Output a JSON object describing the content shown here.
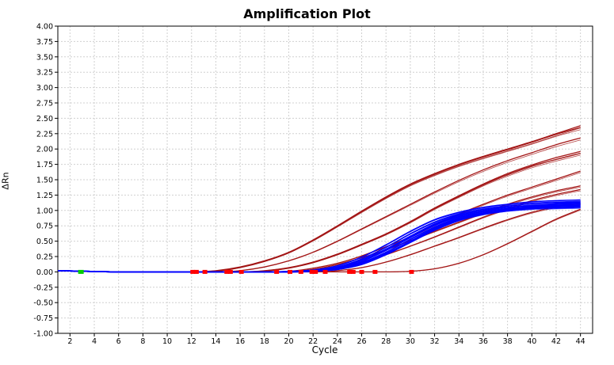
{
  "chart_data": {
    "type": "line",
    "title": "Amplification Plot",
    "xlabel": "Cycle",
    "ylabel": "ΔRn",
    "xlim": [
      1,
      45
    ],
    "ylim": [
      -1.0,
      4.0
    ],
    "x_ticks": [
      2,
      4,
      6,
      8,
      10,
      12,
      14,
      16,
      18,
      20,
      22,
      24,
      26,
      28,
      30,
      32,
      34,
      36,
      38,
      40,
      42,
      44
    ],
    "y_ticks": [
      "-1.00",
      "-0.75",
      "-0.50",
      "-0.25",
      "0.00",
      "0.25",
      "0.50",
      "0.75",
      "1.00",
      "1.25",
      "1.50",
      "1.75",
      "2.00",
      "2.25",
      "2.50",
      "2.75",
      "3.00",
      "3.25",
      "3.50",
      "3.75",
      "4.00"
    ],
    "grid": true,
    "series_colors": {
      "standards": "#a31515",
      "samples": "#0000ff",
      "baseline_start": "#00cc00",
      "ct_marker": "#ff0000"
    },
    "series": [
      {
        "group": "standards",
        "x": [
          1,
          6,
          12,
          14,
          16,
          18,
          20,
          22,
          24,
          26,
          28,
          30,
          32,
          34,
          36,
          38,
          40,
          42,
          44
        ],
        "values": [
          0.02,
          0.0,
          0.0,
          0.02,
          0.08,
          0.18,
          0.32,
          0.52,
          0.75,
          0.99,
          1.22,
          1.43,
          1.6,
          1.75,
          1.88,
          2.0,
          2.12,
          2.25,
          2.38
        ]
      },
      {
        "group": "standards",
        "x": [
          1,
          6,
          12,
          14,
          16,
          18,
          20,
          22,
          24,
          26,
          28,
          30,
          32,
          34,
          36,
          38,
          40,
          42,
          44
        ],
        "values": [
          0.02,
          0.0,
          0.0,
          0.01,
          0.07,
          0.17,
          0.31,
          0.51,
          0.74,
          0.98,
          1.21,
          1.42,
          1.59,
          1.74,
          1.87,
          1.99,
          2.11,
          2.24,
          2.35
        ]
      },
      {
        "group": "standards",
        "x": [
          1,
          6,
          12,
          14,
          16,
          18,
          20,
          22,
          24,
          26,
          28,
          30,
          32,
          34,
          36,
          38,
          40,
          42,
          44
        ],
        "values": [
          0.02,
          0.0,
          0.0,
          0.0,
          0.02,
          0.08,
          0.18,
          0.32,
          0.5,
          0.7,
          0.9,
          1.1,
          1.3,
          1.49,
          1.66,
          1.81,
          1.94,
          2.07,
          2.18
        ]
      },
      {
        "group": "standards",
        "x": [
          1,
          6,
          12,
          16,
          18,
          20,
          22,
          24,
          26,
          28,
          30,
          32,
          34,
          36,
          38,
          40,
          42,
          44
        ],
        "values": [
          0.02,
          0.0,
          0.0,
          0.0,
          0.02,
          0.07,
          0.16,
          0.29,
          0.45,
          0.62,
          0.82,
          1.04,
          1.24,
          1.43,
          1.6,
          1.74,
          1.86,
          1.96
        ]
      },
      {
        "group": "standards",
        "x": [
          1,
          6,
          12,
          16,
          18,
          20,
          22,
          24,
          26,
          28,
          30,
          32,
          34,
          36,
          38,
          40,
          42,
          44
        ],
        "values": [
          0.02,
          0.0,
          0.0,
          0.0,
          0.01,
          0.06,
          0.15,
          0.28,
          0.44,
          0.61,
          0.81,
          1.03,
          1.23,
          1.42,
          1.58,
          1.72,
          1.83,
          1.93
        ]
      },
      {
        "group": "standards",
        "x": [
          1,
          6,
          12,
          18,
          20,
          22,
          24,
          26,
          28,
          30,
          32,
          34,
          36,
          38,
          40,
          42,
          44
        ],
        "values": [
          0.02,
          0.0,
          0.0,
          0.0,
          0.01,
          0.06,
          0.14,
          0.26,
          0.41,
          0.57,
          0.76,
          0.94,
          1.1,
          1.25,
          1.38,
          1.51,
          1.64
        ]
      },
      {
        "group": "standards",
        "x": [
          1,
          6,
          12,
          18,
          20,
          22,
          24,
          26,
          28,
          30,
          32,
          34,
          36,
          38,
          40,
          42,
          44
        ],
        "values": [
          0.02,
          0.0,
          0.0,
          0.0,
          0.0,
          0.04,
          0.12,
          0.23,
          0.36,
          0.51,
          0.66,
          0.81,
          0.96,
          1.1,
          1.22,
          1.32,
          1.4
        ]
      },
      {
        "group": "standards",
        "x": [
          1,
          6,
          12,
          20,
          22,
          24,
          26,
          28,
          30,
          32,
          34,
          36,
          38,
          40,
          42,
          44
        ],
        "values": [
          0.02,
          0.0,
          0.0,
          0.0,
          0.02,
          0.07,
          0.16,
          0.28,
          0.42,
          0.57,
          0.73,
          0.89,
          1.03,
          1.16,
          1.26,
          1.34
        ]
      },
      {
        "group": "standards",
        "x": [
          1,
          6,
          12,
          22,
          24,
          26,
          28,
          30,
          32,
          34,
          36,
          38,
          40,
          42,
          44
        ],
        "values": [
          0.02,
          0.0,
          0.0,
          0.0,
          0.02,
          0.07,
          0.16,
          0.28,
          0.42,
          0.56,
          0.71,
          0.85,
          0.97,
          1.06,
          1.12
        ]
      },
      {
        "group": "standards",
        "x": [
          1,
          6,
          12,
          26,
          28,
          30,
          32,
          34,
          36,
          38,
          40,
          42,
          44
        ],
        "values": [
          0.02,
          0.0,
          0.0,
          0.0,
          0.0,
          0.01,
          0.05,
          0.14,
          0.28,
          0.46,
          0.66,
          0.86,
          1.02
        ]
      },
      {
        "group": "samples",
        "x": [
          1,
          6,
          12,
          18,
          20,
          22,
          24,
          26,
          28,
          30,
          32,
          34,
          36,
          38,
          40,
          42,
          44
        ],
        "values": [
          0.02,
          0.0,
          0.0,
          0.0,
          0.01,
          0.03,
          0.1,
          0.24,
          0.44,
          0.66,
          0.85,
          0.97,
          1.05,
          1.1,
          1.14,
          1.16,
          1.17
        ]
      },
      {
        "group": "samples",
        "x": [
          1,
          6,
          12,
          18,
          20,
          22,
          24,
          26,
          28,
          30,
          32,
          34,
          36,
          38,
          40,
          42,
          44
        ],
        "values": [
          0.02,
          0.0,
          0.0,
          0.0,
          0.0,
          0.02,
          0.08,
          0.21,
          0.4,
          0.62,
          0.81,
          0.94,
          1.02,
          1.07,
          1.11,
          1.13,
          1.14
        ]
      },
      {
        "group": "samples",
        "x": [
          1,
          6,
          12,
          18,
          20,
          22,
          24,
          26,
          28,
          30,
          32,
          34,
          36,
          38,
          40,
          42,
          44
        ],
        "values": [
          0.02,
          0.0,
          0.0,
          0.0,
          0.0,
          0.02,
          0.07,
          0.19,
          0.37,
          0.58,
          0.78,
          0.92,
          1.0,
          1.05,
          1.08,
          1.1,
          1.11
        ]
      },
      {
        "group": "samples",
        "x": [
          1,
          6,
          12,
          18,
          20,
          22,
          24,
          26,
          28,
          30,
          32,
          34,
          36,
          38,
          40,
          42,
          44
        ],
        "values": [
          0.02,
          0.0,
          0.0,
          0.0,
          0.0,
          0.01,
          0.06,
          0.17,
          0.35,
          0.56,
          0.76,
          0.9,
          0.98,
          1.03,
          1.06,
          1.08,
          1.09
        ]
      },
      {
        "group": "samples",
        "x": [
          1,
          6,
          12,
          18,
          20,
          22,
          24,
          26,
          28,
          30,
          32,
          34,
          36,
          38,
          40,
          42,
          44
        ],
        "values": [
          0.02,
          0.0,
          0.0,
          0.0,
          0.0,
          0.01,
          0.05,
          0.15,
          0.32,
          0.53,
          0.73,
          0.88,
          0.96,
          1.01,
          1.04,
          1.06,
          1.07
        ]
      },
      {
        "group": "samples",
        "x": [
          1,
          6,
          12,
          18,
          20,
          22,
          24,
          26,
          28,
          30,
          32,
          34,
          36,
          38,
          40,
          42,
          44
        ],
        "values": [
          0.02,
          0.0,
          0.0,
          0.0,
          0.0,
          0.01,
          0.05,
          0.14,
          0.3,
          0.5,
          0.71,
          0.86,
          0.95,
          1.0,
          1.03,
          1.04,
          1.05
        ]
      },
      {
        "group": "samples",
        "x": [
          1,
          6,
          12,
          18,
          20,
          22,
          24,
          26,
          28,
          30,
          32,
          34,
          36,
          38,
          40,
          42,
          44
        ],
        "values": [
          0.02,
          0.0,
          0.0,
          0.0,
          0.0,
          0.01,
          0.04,
          0.12,
          0.28,
          0.48,
          0.68,
          0.84,
          0.94,
          1.0,
          1.04,
          1.07,
          1.08
        ]
      },
      {
        "group": "samples",
        "x": [
          1,
          6,
          12,
          18,
          20,
          22,
          24,
          26,
          28,
          30,
          32,
          34,
          36,
          38,
          40,
          42,
          44
        ],
        "values": [
          0.02,
          0.0,
          0.0,
          0.0,
          0.0,
          0.01,
          0.04,
          0.13,
          0.29,
          0.49,
          0.69,
          0.85,
          0.95,
          1.02,
          1.07,
          1.11,
          1.13
        ]
      }
    ],
    "ct_markers_x": [
      12.1,
      12.4,
      13.1,
      14.9,
      15.2,
      16.1,
      19.0,
      20.1,
      21.0,
      21.9,
      22.2,
      23.0,
      25.0,
      25.3,
      26.0,
      27.1,
      30.1
    ],
    "baseline_start_x": 2.9
  }
}
